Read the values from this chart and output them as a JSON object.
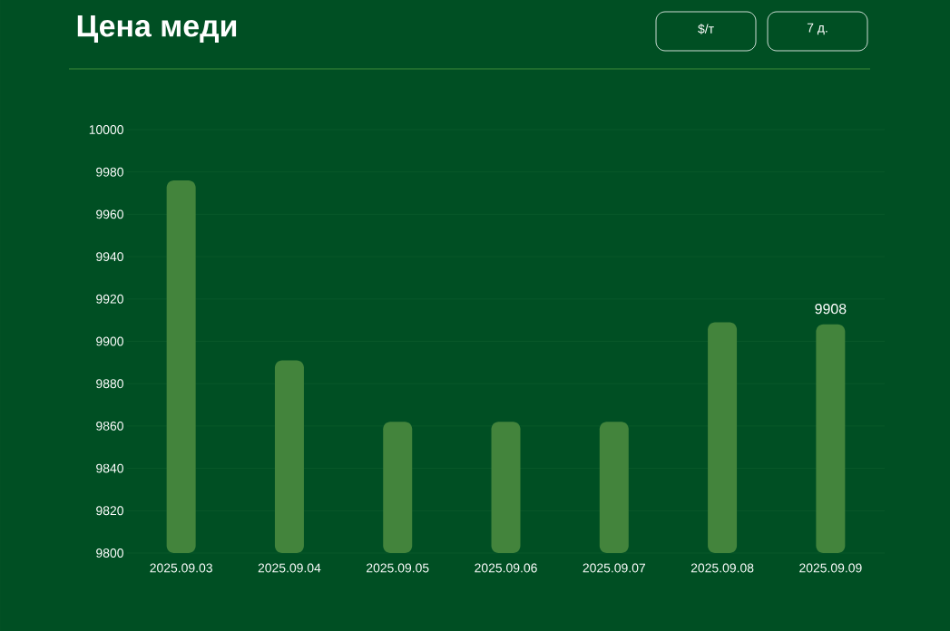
{
  "chart_data": {
    "type": "bar",
    "title": "Цена меди",
    "annotations": [
      "$/т",
      "7 д."
    ],
    "categories": [
      "2025.09.03",
      "2025.09.04",
      "2025.09.05",
      "2025.09.06",
      "2025.09.07",
      "2025.09.08",
      "2025.09.09"
    ],
    "values": [
      9976,
      9891,
      9862,
      9862,
      9862,
      9909,
      9908
    ],
    "value_labels": [
      null,
      null,
      null,
      null,
      null,
      null,
      "9908"
    ],
    "color": "#43843c",
    "ylim": [
      9800,
      10000
    ],
    "yticks": [
      9800,
      9820,
      9840,
      9860,
      9880,
      9900,
      9920,
      9940,
      9960,
      9980,
      10000
    ],
    "grid": "y"
  }
}
